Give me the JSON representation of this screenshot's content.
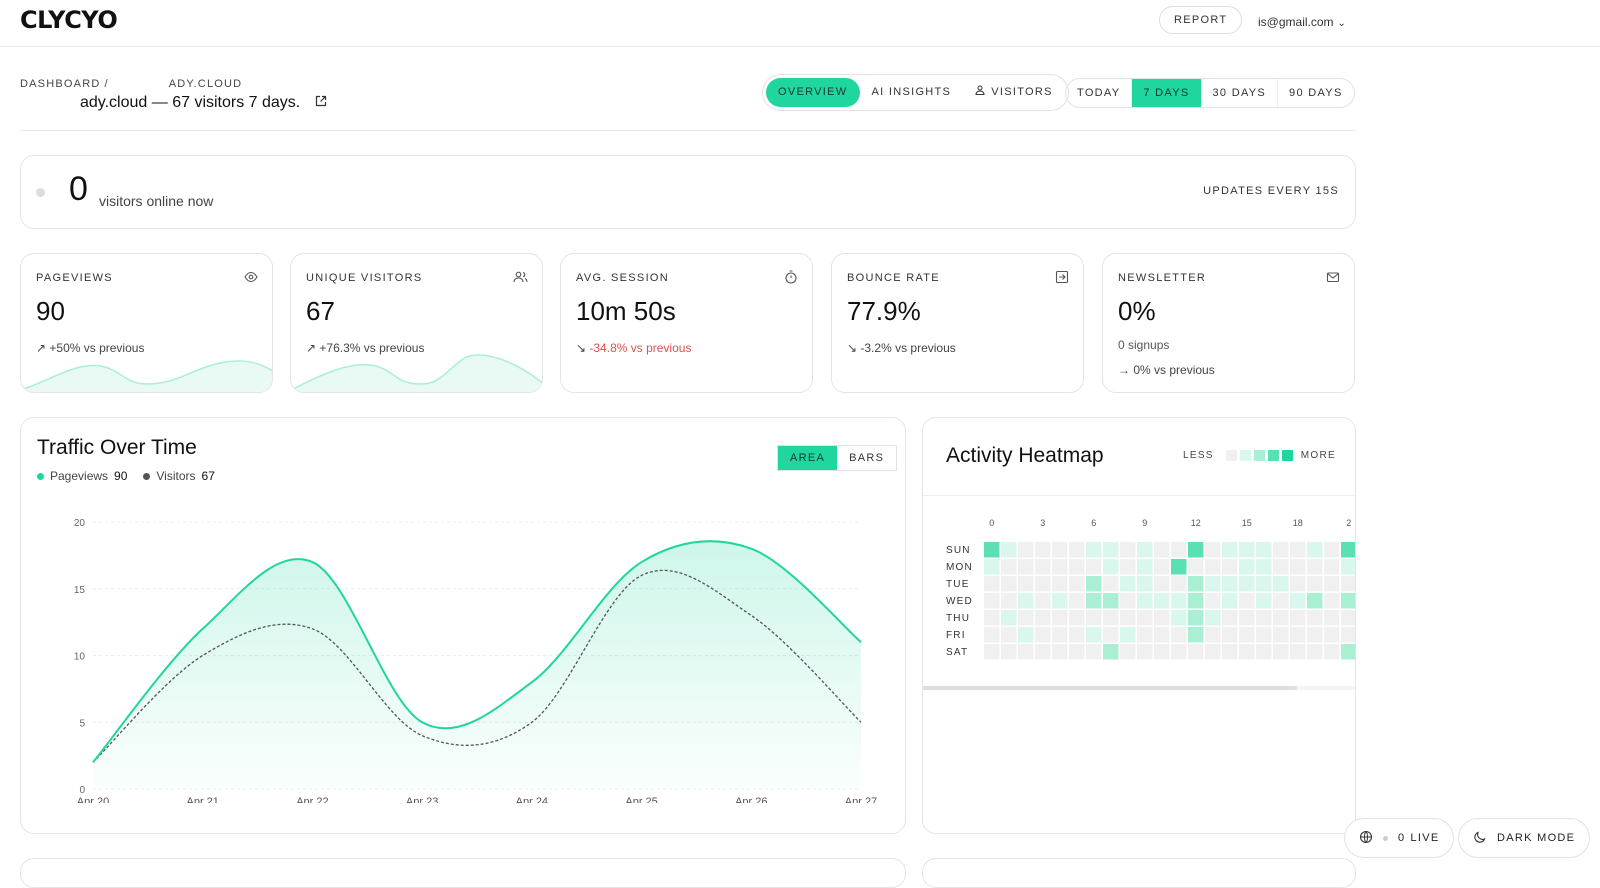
{
  "app": {
    "logo": "CLYCYO",
    "report_label": "REPORT",
    "user_email": "is@gmail.com"
  },
  "breadcrumb": {
    "root": "DASHBOARD",
    "separator": "/",
    "site": "ADY.CLOUD"
  },
  "page": {
    "title": "ady.cloud — 67 visitors 7 days."
  },
  "view_tabs": [
    {
      "label": "OVERVIEW",
      "active": true
    },
    {
      "label": "AI INSIGHTS",
      "active": false
    },
    {
      "label": "VISITORS",
      "active": false,
      "icon": "user-icon"
    }
  ],
  "range_tabs": [
    {
      "label": "TODAY",
      "active": false
    },
    {
      "label": "7 DAYS",
      "active": true
    },
    {
      "label": "30 DAYS",
      "active": false
    },
    {
      "label": "90 DAYS",
      "active": false
    }
  ],
  "online": {
    "count": "0",
    "label": "visitors online now",
    "updates": "UPDATES EVERY 15S"
  },
  "stats": [
    {
      "label": "PAGEVIEWS",
      "icon": "eye-icon",
      "value": "90",
      "change": "+50% vs previous",
      "trend": "up"
    },
    {
      "label": "UNIQUE VISITORS",
      "icon": "users-icon",
      "value": "67",
      "change": "+76.3% vs previous",
      "trend": "up"
    },
    {
      "label": "AVG. SESSION",
      "icon": "stopwatch-icon",
      "value": "10m 50s",
      "change": "-34.8% vs previous",
      "trend": "down-neg"
    },
    {
      "label": "BOUNCE RATE",
      "icon": "exit-icon",
      "value": "77.9%",
      "change": "-3.2% vs previous",
      "trend": "down"
    },
    {
      "label": "NEWSLETTER",
      "icon": "mail-icon",
      "value": "0%",
      "sub": "0 signups",
      "change": "0% vs previous",
      "trend": "flat"
    }
  ],
  "traffic": {
    "title": "Traffic Over Time",
    "toggle": [
      {
        "label": "AREA",
        "active": true
      },
      {
        "label": "BARS",
        "active": false
      }
    ],
    "legend": [
      {
        "name": "Pageviews",
        "value": "90",
        "color": "#1fd69f"
      },
      {
        "name": "Visitors",
        "value": "67",
        "color": "#555555"
      }
    ]
  },
  "heatmap": {
    "title": "Activity Heatmap",
    "less_label": "LESS",
    "more_label": "MORE",
    "hour_labels": [
      "0",
      "3",
      "6",
      "9",
      "12",
      "15",
      "18",
      "2"
    ],
    "days": [
      "SUN",
      "MON",
      "TUE",
      "WED",
      "THU",
      "FRI",
      "SAT"
    ],
    "levels": [
      [
        3,
        1,
        0,
        0,
        0,
        0,
        1,
        1,
        0,
        1,
        0,
        0,
        3,
        0,
        1,
        1,
        1,
        0,
        0,
        1,
        0,
        3
      ],
      [
        1,
        0,
        0,
        0,
        0,
        0,
        0,
        1,
        0,
        1,
        0,
        3,
        0,
        0,
        0,
        1,
        1,
        0,
        0,
        0,
        0,
        1
      ],
      [
        0,
        0,
        0,
        0,
        0,
        0,
        2,
        0,
        1,
        1,
        0,
        0,
        2,
        1,
        1,
        1,
        1,
        1,
        0,
        0,
        0,
        0
      ],
      [
        0,
        0,
        1,
        0,
        1,
        0,
        2,
        2,
        0,
        1,
        1,
        1,
        2,
        0,
        1,
        0,
        1,
        0,
        1,
        2,
        0,
        2
      ],
      [
        0,
        1,
        0,
        0,
        0,
        0,
        0,
        0,
        0,
        0,
        0,
        1,
        2,
        1,
        0,
        0,
        0,
        0,
        0,
        0,
        0,
        0
      ],
      [
        0,
        0,
        1,
        0,
        0,
        0,
        1,
        0,
        1,
        0,
        0,
        0,
        2,
        0,
        0,
        0,
        0,
        0,
        0,
        0,
        0,
        0
      ],
      [
        0,
        0,
        0,
        0,
        0,
        0,
        0,
        2,
        0,
        0,
        0,
        0,
        0,
        0,
        0,
        0,
        0,
        0,
        0,
        0,
        0,
        2
      ]
    ],
    "colors": [
      "#f0f0f0",
      "#d9f7ec",
      "#a8efd4",
      "#5be0b4",
      "#1fd69f"
    ]
  },
  "footer": {
    "live_count": "0",
    "live_label": "LIVE",
    "dark_mode_label": "DARK MODE"
  },
  "chart_data": {
    "type": "area",
    "title": "",
    "xlabel": "",
    "ylabel": "",
    "categories": [
      "Apr 20",
      "Apr 21",
      "Apr 22",
      "Apr 23",
      "Apr 24",
      "Apr 25",
      "Apr 26",
      "Apr 27"
    ],
    "series": [
      {
        "name": "Pageviews",
        "values": [
          2,
          12,
          17,
          5,
          8,
          17,
          18,
          11
        ]
      },
      {
        "name": "Visitors",
        "values": [
          2,
          10,
          12,
          4,
          5,
          16,
          13,
          5
        ]
      }
    ],
    "ylim": [
      0,
      20
    ],
    "yticks": [
      0,
      5,
      10,
      15,
      20
    ],
    "grid": true
  }
}
